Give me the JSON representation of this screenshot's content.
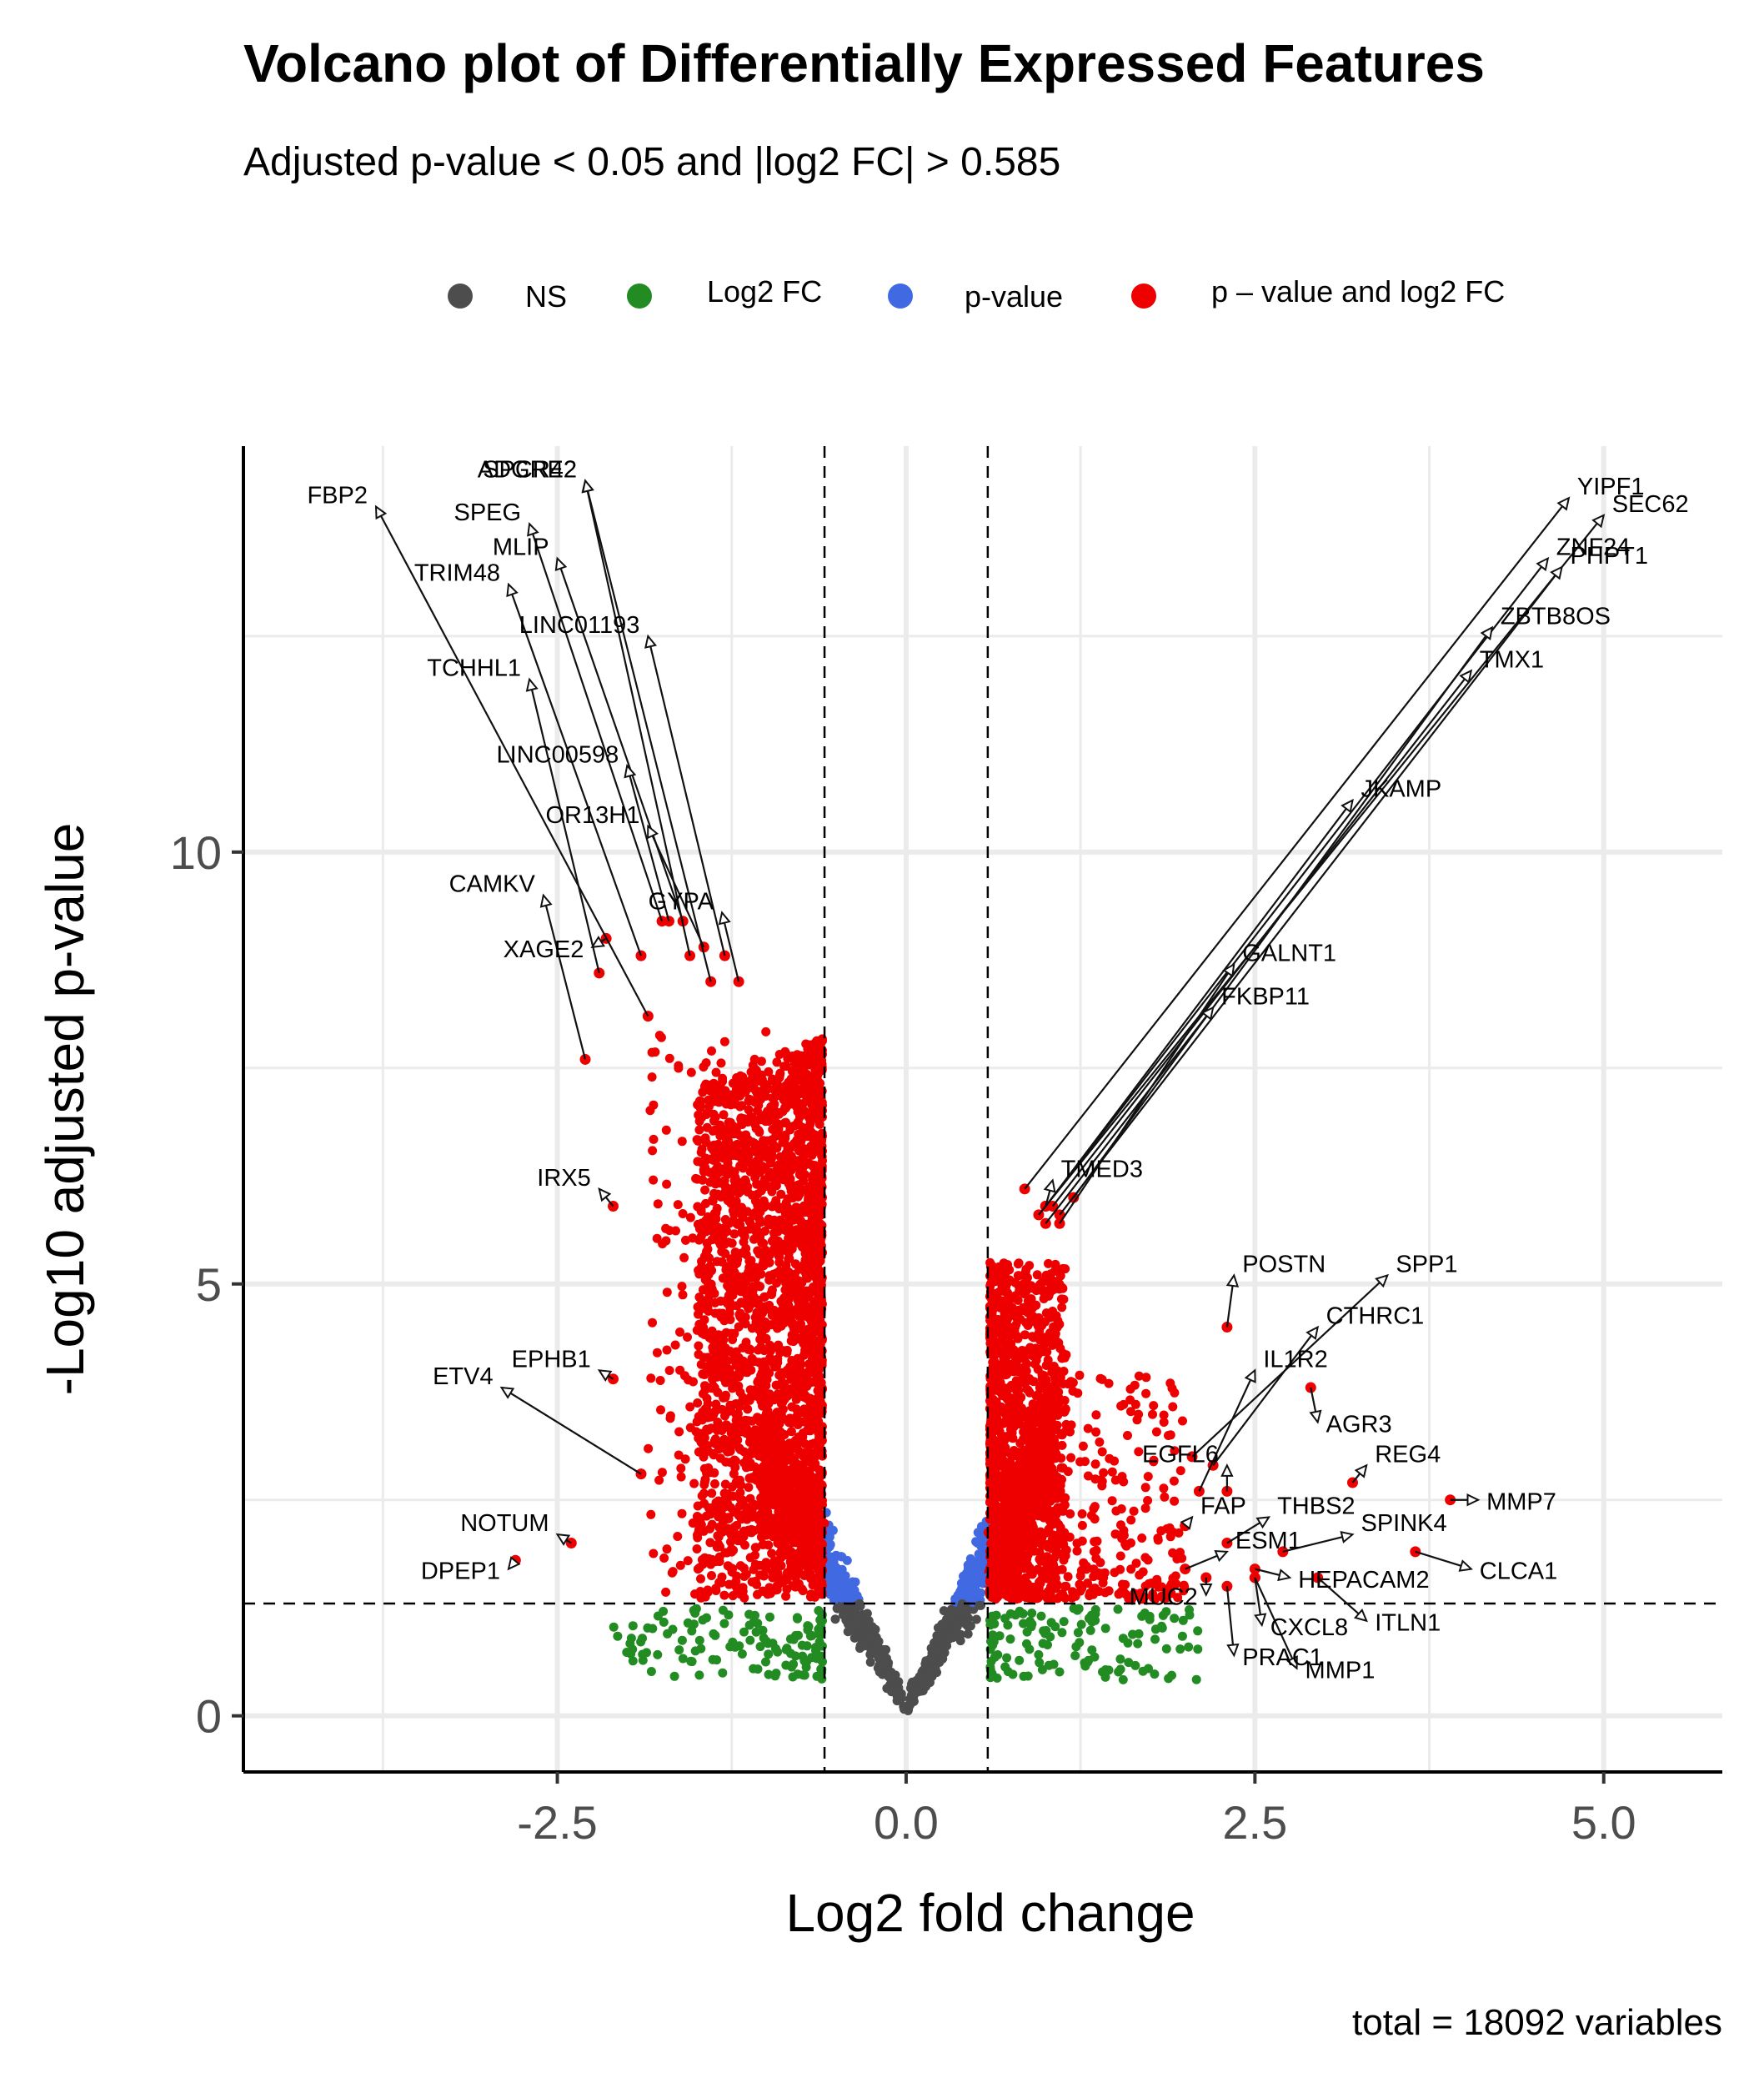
{
  "chart_data": {
    "type": "scatter",
    "title": "Volcano plot of Differentially Expressed Features",
    "subtitle": "Adjusted p-value < 0.05 and |log2 FC| > 0.585",
    "xlabel": "Log2 fold change",
    "ylabel": "-Log10 adjusted p-value",
    "caption": "total = 18092 variables",
    "xlim": [
      -4.75,
      5.85
    ],
    "ylim": [
      -0.65,
      14.7
    ],
    "x_ticks": [
      -2.5,
      0.0,
      2.5,
      5.0
    ],
    "x_tick_labels": [
      "-2.5",
      "0.0",
      "2.5",
      "5.0"
    ],
    "y_ticks": [
      0,
      5,
      10
    ],
    "y_tick_labels": [
      "0",
      "5",
      "10"
    ],
    "cutoffs": {
      "log2fc": 0.585,
      "padj_neglog10": 1.3
    },
    "grid": true,
    "legend_position": "top",
    "legend": [
      {
        "label": "NS",
        "color": "#4d4d4d"
      },
      {
        "label": "Log2 FC",
        "color": "#228b22"
      },
      {
        "label": "p-value",
        "color": "#4169e1"
      },
      {
        "label": "p – value and log2 FC",
        "color": "#ee0000"
      }
    ],
    "labeled_points": [
      {
        "gene": "FBP2",
        "x": -1.85,
        "y": 8.1,
        "lx": -3.8,
        "ly": 14.0
      },
      {
        "gene": "ADGRE2",
        "x": -1.55,
        "y": 8.8,
        "lx": -2.3,
        "ly": 14.3
      },
      {
        "gene": "SPCR42",
        "x": -1.4,
        "y": 8.5,
        "lx": -2.3,
        "ly": 14.3
      },
      {
        "gene": "SPEG",
        "x": -1.75,
        "y": 9.2,
        "lx": -2.7,
        "ly": 13.8
      },
      {
        "gene": "MLIP",
        "x": -1.6,
        "y": 9.2,
        "lx": -2.5,
        "ly": 13.4
      },
      {
        "gene": "TRIM48",
        "x": -1.9,
        "y": 8.8,
        "lx": -2.85,
        "ly": 13.1
      },
      {
        "gene": "LINC01193",
        "x": -1.3,
        "y": 8.8,
        "lx": -1.85,
        "ly": 12.5
      },
      {
        "gene": "TCHHL1",
        "x": -2.2,
        "y": 8.6,
        "lx": -2.7,
        "ly": 12.0
      },
      {
        "gene": "LINC00598",
        "x": -1.7,
        "y": 9.2,
        "lx": -2.0,
        "ly": 11.0
      },
      {
        "gene": "OR13H1",
        "x": -1.45,
        "y": 8.9,
        "lx": -1.85,
        "ly": 10.3
      },
      {
        "gene": "GYPA",
        "x": -1.2,
        "y": 8.5,
        "lx": -1.32,
        "ly": 9.3
      },
      {
        "gene": "CAMKV",
        "x": -2.3,
        "y": 7.6,
        "lx": -2.6,
        "ly": 9.5
      },
      {
        "gene": "XAGE2",
        "x": -2.15,
        "y": 9.0,
        "lx": -2.25,
        "ly": 8.9
      },
      {
        "gene": "IRX5",
        "x": -2.1,
        "y": 5.9,
        "lx": -2.2,
        "ly": 6.1
      },
      {
        "gene": "EPHB1",
        "x": -2.1,
        "y": 3.9,
        "lx": -2.2,
        "ly": 4.0
      },
      {
        "gene": "ETV4",
        "x": -1.9,
        "y": 2.8,
        "lx": -2.9,
        "ly": 3.8
      },
      {
        "gene": "NOTUM",
        "x": -2.4,
        "y": 2.0,
        "lx": -2.5,
        "ly": 2.1
      },
      {
        "gene": "DPEP1",
        "x": -2.8,
        "y": 1.8,
        "lx": -2.85,
        "ly": 1.7
      },
      {
        "gene": "YIPF1",
        "x": 0.85,
        "y": 6.1,
        "lx": 4.75,
        "ly": 14.1
      },
      {
        "gene": "SEC62",
        "x": 0.95,
        "y": 5.8,
        "lx": 5.0,
        "ly": 13.9
      },
      {
        "gene": "ZNF24",
        "x": 1.0,
        "y": 5.9,
        "lx": 4.6,
        "ly": 13.4
      },
      {
        "gene": "PHPT1",
        "x": 1.1,
        "y": 5.8,
        "lx": 4.7,
        "ly": 13.3
      },
      {
        "gene": "ZBTB8OS",
        "x": 1.2,
        "y": 6.0,
        "lx": 4.2,
        "ly": 12.6
      },
      {
        "gene": "TMX1",
        "x": 1.05,
        "y": 5.9,
        "lx": 4.05,
        "ly": 12.1
      },
      {
        "gene": "JKAMP",
        "x": 1.0,
        "y": 5.9,
        "lx": 3.2,
        "ly": 10.6
      },
      {
        "gene": "GALNT1",
        "x": 1.1,
        "y": 5.7,
        "lx": 2.35,
        "ly": 8.7
      },
      {
        "gene": "FKBP11",
        "x": 1.0,
        "y": 5.7,
        "lx": 2.2,
        "ly": 8.2
      },
      {
        "gene": "TMED3",
        "x": 1.0,
        "y": 5.9,
        "lx": 1.05,
        "ly": 6.2
      },
      {
        "gene": "POSTN",
        "x": 2.3,
        "y": 4.5,
        "lx": 2.35,
        "ly": 5.1
      },
      {
        "gene": "SPP1",
        "x": 2.05,
        "y": 3.0,
        "lx": 3.45,
        "ly": 5.1
      },
      {
        "gene": "CTHRC1",
        "x": 2.2,
        "y": 2.9,
        "lx": 2.95,
        "ly": 4.5
      },
      {
        "gene": "IL1R2",
        "x": 2.1,
        "y": 2.6,
        "lx": 2.5,
        "ly": 4.0
      },
      {
        "gene": "AGR3",
        "x": 2.9,
        "y": 3.8,
        "lx": 2.95,
        "ly": 3.4
      },
      {
        "gene": "EGFL6",
        "x": 2.3,
        "y": 2.6,
        "lx": 2.3,
        "ly": 2.9
      },
      {
        "gene": "REG4",
        "x": 3.2,
        "y": 2.7,
        "lx": 3.3,
        "ly": 2.9
      },
      {
        "gene": "MMP7",
        "x": 3.9,
        "y": 2.5,
        "lx": 4.1,
        "ly": 2.5
      },
      {
        "gene": "FAP",
        "x": 2.0,
        "y": 2.2,
        "lx": 2.05,
        "ly": 2.3
      },
      {
        "gene": "THBS2",
        "x": 2.3,
        "y": 2.0,
        "lx": 2.6,
        "ly": 2.3
      },
      {
        "gene": "SPINK4",
        "x": 2.7,
        "y": 1.9,
        "lx": 3.2,
        "ly": 2.1
      },
      {
        "gene": "ESM1",
        "x": 2.0,
        "y": 1.7,
        "lx": 2.3,
        "ly": 1.9
      },
      {
        "gene": "CLCA1",
        "x": 3.65,
        "y": 1.9,
        "lx": 4.05,
        "ly": 1.7
      },
      {
        "gene": "HEPACAM2",
        "x": 2.5,
        "y": 1.7,
        "lx": 2.75,
        "ly": 1.6
      },
      {
        "gene": "MUC2",
        "x": 2.15,
        "y": 1.6,
        "lx": 2.15,
        "ly": 1.4
      },
      {
        "gene": "CXCL8",
        "x": 2.5,
        "y": 1.6,
        "lx": 2.55,
        "ly": 1.05
      },
      {
        "gene": "ITLN1",
        "x": 2.95,
        "y": 1.6,
        "lx": 3.3,
        "ly": 1.1
      },
      {
        "gene": "PRAC1",
        "x": 2.3,
        "y": 1.5,
        "lx": 2.35,
        "ly": 0.7
      },
      {
        "gene": "MMP1",
        "x": 2.5,
        "y": 1.6,
        "lx": 2.8,
        "ly": 0.55
      }
    ]
  }
}
